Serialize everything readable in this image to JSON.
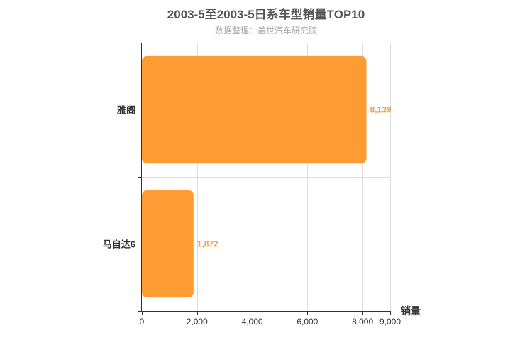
{
  "chart_data": {
    "type": "bar",
    "orientation": "horizontal",
    "title": "2003-5至2003-5日系车型销量TOP10",
    "subtitle": "数据整理：盖世汽车研究院",
    "categories": [
      "雅阁",
      "马自达6"
    ],
    "values": [
      8139,
      1872
    ],
    "value_labels": [
      "8,139",
      "1,872"
    ],
    "xlabel": "销量",
    "xlim": [
      0,
      9000
    ],
    "x_ticks": [
      0,
      2000,
      4000,
      6000,
      8000,
      9000
    ],
    "x_tick_labels": [
      "0",
      "2,000",
      "4,000",
      "6,000",
      "8,000",
      "9,000"
    ],
    "grid": true,
    "bar_color": "#ff9b33",
    "label_color": "#f5a04a"
  }
}
